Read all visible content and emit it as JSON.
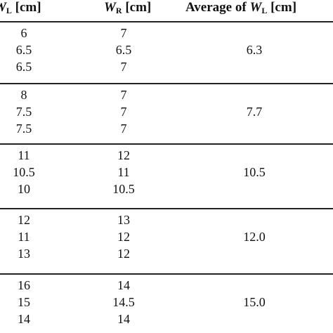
{
  "header": {
    "wl_prefix": "W",
    "wl_sub": "L",
    "wl_suffix": " [cm]",
    "wr_prefix": "W",
    "wr_sub": "R",
    "wr_suffix": " [cm]",
    "avg_prefix": "Average of ",
    "avg_var": "W",
    "avg_sub": "L",
    "avg_suffix": " [cm]"
  },
  "groups": [
    {
      "wl": [
        "6",
        "6.5",
        "6.5"
      ],
      "wr": [
        "7",
        "6.5",
        "7"
      ],
      "avg": "6.3"
    },
    {
      "wl": [
        "8",
        "7.5",
        "7.5"
      ],
      "wr": [
        "7",
        "7",
        "7"
      ],
      "avg": "7.7"
    },
    {
      "wl": [
        "11",
        "10.5",
        "10"
      ],
      "wr": [
        "12",
        "11",
        "10.5"
      ],
      "avg": "10.5"
    },
    {
      "wl": [
        "12",
        "11",
        "13"
      ],
      "wr": [
        "13",
        "12",
        "12"
      ],
      "avg": "12.0"
    },
    {
      "wl": [
        "16",
        "15",
        "14"
      ],
      "wr": [
        "14",
        "14.5",
        "14"
      ],
      "avg": "15.0"
    }
  ]
}
